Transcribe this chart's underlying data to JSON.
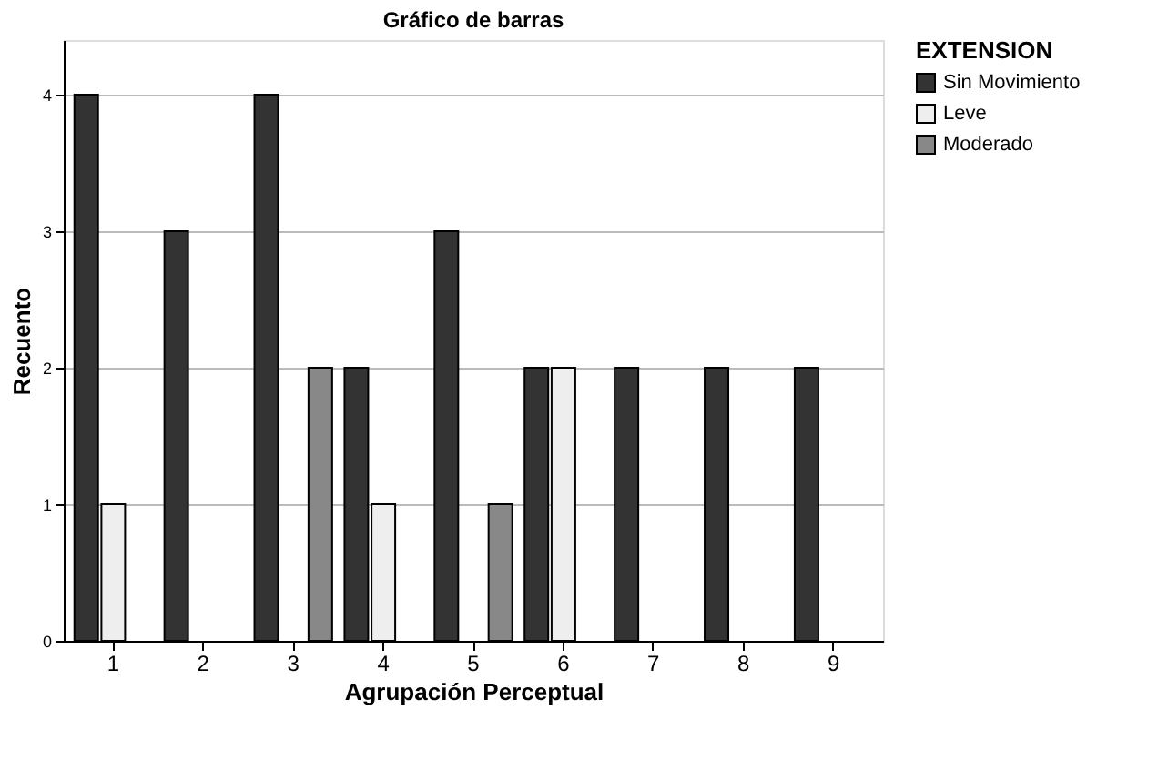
{
  "chart_data": {
    "type": "bar",
    "title": "Gráfico de barras",
    "xlabel": "Agrupación Perceptual",
    "ylabel": "Recuento",
    "legend_title": "EXTENSION",
    "categories": [
      "1",
      "2",
      "3",
      "4",
      "5",
      "6",
      "7",
      "8",
      "9"
    ],
    "series": [
      {
        "name": "Sin Movimiento",
        "color": "#333333",
        "values": [
          4,
          3,
          4,
          2,
          3,
          2,
          2,
          2,
          2
        ]
      },
      {
        "name": "Leve",
        "color": "#eeeeee",
        "values": [
          1,
          null,
          null,
          1,
          null,
          2,
          null,
          null,
          null
        ]
      },
      {
        "name": "Moderado",
        "color": "#888888",
        "values": [
          null,
          null,
          2,
          null,
          1,
          null,
          null,
          null,
          null
        ]
      }
    ],
    "ylim": [
      0,
      4.4
    ],
    "yticks": [
      0,
      1,
      2,
      3,
      4
    ],
    "grid": "y",
    "legend": "top right"
  }
}
